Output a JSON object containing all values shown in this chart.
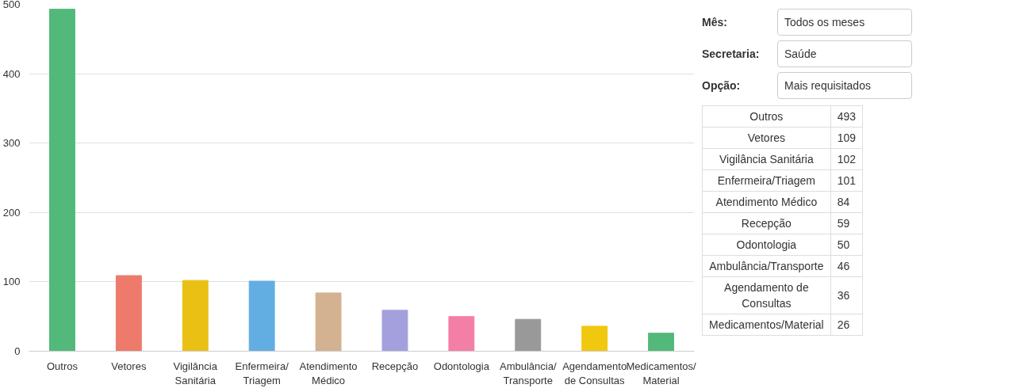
{
  "chart_data": [
    {
      "type": "bar",
      "categories": [
        "Outros",
        "Vetores",
        "Vigilância Sanitária",
        "Enfermeira/Triagem",
        "Atendimento Médico",
        "Recepção",
        "Odontologia",
        "Ambulância/Transporte",
        "Agendamento de Consultas",
        "Medicamentos/Material"
      ],
      "values": [
        493,
        109,
        102,
        101,
        84,
        59,
        50,
        46,
        36,
        26
      ],
      "colors": [
        "#52b97a",
        "#ee7a6c",
        "#eac015",
        "#62aee3",
        "#d3b291",
        "#a3a0dd",
        "#f47fa6",
        "#999999",
        "#f0c80e",
        "#52b97a"
      ],
      "ylim": [
        0,
        500
      ],
      "yticks": [
        0,
        100,
        200,
        300,
        400,
        500
      ],
      "grid": "y"
    },
    {
      "type": "other",
      "categories": [
        "Outros",
        "Vetores",
        "Vigilância Sanitária",
        "Enfermeira/Triagem",
        "Atendimento Médico",
        "Recepção",
        "Odontologia",
        "Ambulância/Transporte",
        "Agendamento de Consultas",
        "Medicamentos/Material"
      ],
      "values": [
        493,
        109,
        102,
        101,
        84,
        59,
        50,
        46,
        36,
        26
      ],
      "data_labels": true,
      "annotations": [
        "Mês: Todos os meses",
        "Secretaria: Saúde",
        "Opção: Mais requisitados"
      ]
    }
  ]
}
